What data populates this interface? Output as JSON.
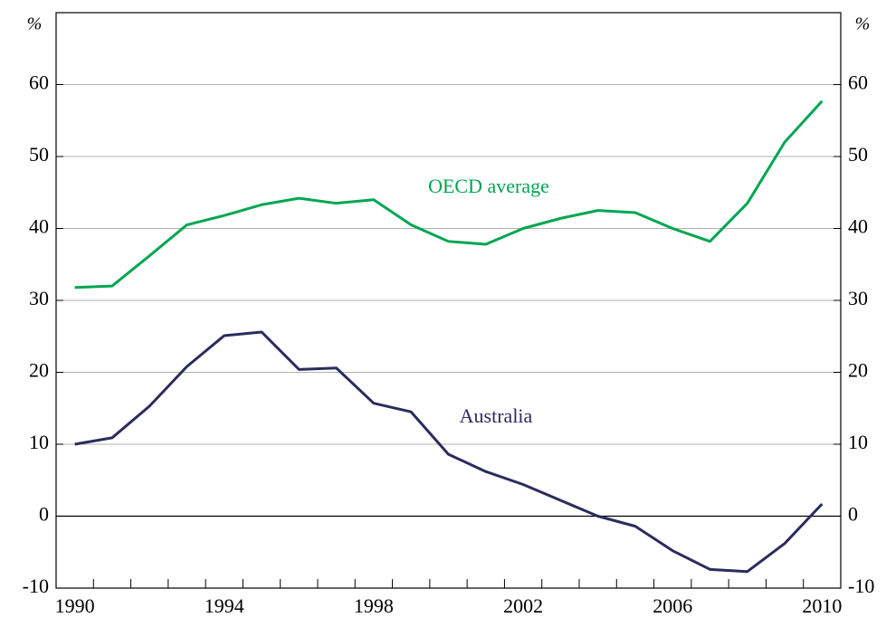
{
  "chart_data": {
    "type": "line",
    "y_unit": "%",
    "x": [
      1990,
      1991,
      1992,
      1993,
      1994,
      1995,
      1996,
      1997,
      1998,
      1999,
      2000,
      2001,
      2002,
      2003,
      2004,
      2005,
      2006,
      2007,
      2008,
      2009,
      2010
    ],
    "series": [
      {
        "name": "OECD average",
        "color": "#00a651",
        "values": [
          31.8,
          32,
          36.2,
          40.5,
          41.8,
          43.3,
          44.2,
          43.5,
          44,
          40.5,
          38.2,
          37.8,
          40,
          41.4,
          42.5,
          42.2,
          40,
          38.2,
          43.5,
          52,
          57.7
        ]
      },
      {
        "name": "Australia",
        "color": "#2b2c5c",
        "values": [
          10,
          10.9,
          15.3,
          20.8,
          25.1,
          25.6,
          20.4,
          20.6,
          15.7,
          14.5,
          8.6,
          6.2,
          4.4,
          2.2,
          0,
          -1.4,
          -4.8,
          -7.4,
          -7.7,
          -3.8,
          1.7
        ]
      }
    ],
    "xlim": [
      1989.5,
      2010.5
    ],
    "xticks": [
      1990,
      1994,
      1998,
      2002,
      2006,
      2010
    ],
    "ylim": [
      -10,
      70
    ],
    "yticks": [
      -10,
      0,
      10,
      20,
      30,
      40,
      50,
      60
    ],
    "grid": true
  }
}
